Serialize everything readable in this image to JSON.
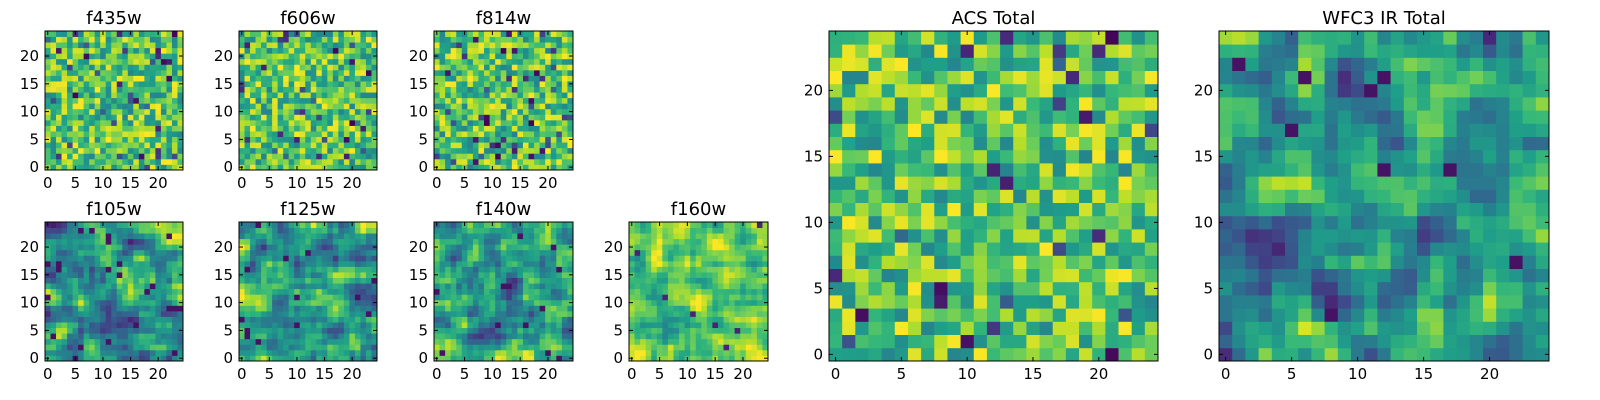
{
  "chart_data": [
    {
      "type": "heatmap",
      "title": "f435w",
      "xticks": [
        0,
        5,
        10,
        15,
        20
      ],
      "yticks": [
        0,
        5,
        10,
        15,
        20
      ],
      "xlim": [
        -0.5,
        24.5
      ],
      "ylim": [
        -0.5,
        24.5
      ],
      "nx": 25,
      "ny": 25,
      "colormap": "viridis",
      "grid": false,
      "texture": "noisy"
    },
    {
      "type": "heatmap",
      "title": "f606w",
      "xticks": [
        0,
        5,
        10,
        15,
        20
      ],
      "yticks": [
        0,
        5,
        10,
        15,
        20
      ],
      "xlim": [
        -0.5,
        24.5
      ],
      "ylim": [
        -0.5,
        24.5
      ],
      "nx": 25,
      "ny": 25,
      "colormap": "viridis",
      "grid": false,
      "texture": "noisy"
    },
    {
      "type": "heatmap",
      "title": "f814w",
      "xticks": [
        0,
        5,
        10,
        15,
        20
      ],
      "yticks": [
        0,
        5,
        10,
        15,
        20
      ],
      "xlim": [
        -0.5,
        24.5
      ],
      "ylim": [
        -0.5,
        24.5
      ],
      "nx": 25,
      "ny": 25,
      "colormap": "viridis",
      "grid": false,
      "texture": "noisy"
    },
    {
      "type": "heatmap",
      "title": "f105w",
      "xticks": [
        0,
        5,
        10,
        15,
        20
      ],
      "yticks": [
        0,
        5,
        10,
        15,
        20
      ],
      "xlim": [
        -0.5,
        24.5
      ],
      "ylim": [
        -0.5,
        24.5
      ],
      "nx": 25,
      "ny": 25,
      "colormap": "viridis",
      "grid": false,
      "texture": "smooth"
    },
    {
      "type": "heatmap",
      "title": "f125w",
      "xticks": [
        0,
        5,
        10,
        15,
        20
      ],
      "yticks": [
        0,
        5,
        10,
        15,
        20
      ],
      "xlim": [
        -0.5,
        24.5
      ],
      "ylim": [
        -0.5,
        24.5
      ],
      "nx": 25,
      "ny": 25,
      "colormap": "viridis",
      "grid": false,
      "texture": "smooth"
    },
    {
      "type": "heatmap",
      "title": "f140w",
      "xticks": [
        0,
        5,
        10,
        15,
        20
      ],
      "yticks": [
        0,
        5,
        10,
        15,
        20
      ],
      "xlim": [
        -0.5,
        24.5
      ],
      "ylim": [
        -0.5,
        24.5
      ],
      "nx": 25,
      "ny": 25,
      "colormap": "viridis",
      "grid": false,
      "texture": "smooth"
    },
    {
      "type": "heatmap",
      "title": "f160w",
      "xticks": [
        0,
        5,
        10,
        15,
        20
      ],
      "yticks": [
        0,
        5,
        10,
        15,
        20
      ],
      "xlim": [
        -0.5,
        24.5
      ],
      "ylim": [
        -0.5,
        24.5
      ],
      "nx": 25,
      "ny": 25,
      "colormap": "viridis",
      "grid": false,
      "texture": "bright"
    },
    {
      "type": "heatmap",
      "title": "ACS Total",
      "xticks": [
        0,
        5,
        10,
        15,
        20
      ],
      "yticks": [
        0,
        5,
        10,
        15,
        20
      ],
      "xlim": [
        -0.5,
        24.5
      ],
      "ylim": [
        -0.5,
        24.5
      ],
      "nx": 25,
      "ny": 25,
      "colormap": "viridis",
      "grid": false,
      "texture": "noisy"
    },
    {
      "type": "heatmap",
      "title": "WFC3 IR Total",
      "xticks": [
        0,
        5,
        10,
        15,
        20
      ],
      "yticks": [
        0,
        5,
        10,
        15,
        20
      ],
      "xlim": [
        -0.5,
        24.5
      ],
      "ylim": [
        -0.5,
        24.5
      ],
      "nx": 25,
      "ny": 25,
      "colormap": "viridis",
      "grid": false,
      "texture": "smooth"
    }
  ]
}
